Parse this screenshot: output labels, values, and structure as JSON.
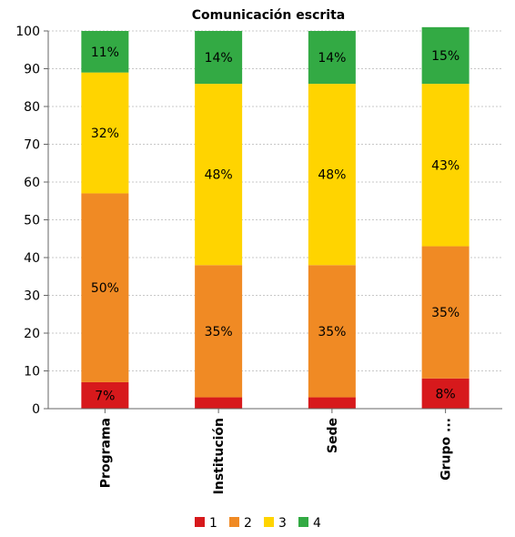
{
  "chart_data": {
    "type": "bar",
    "stacked": true,
    "title": "Comunicación escrita",
    "xlabel": "",
    "ylabel": "",
    "ylim": [
      0,
      100
    ],
    "yticks": [
      "0",
      "10",
      "20",
      "30",
      "40",
      "50",
      "60",
      "70",
      "80",
      "90",
      "100"
    ],
    "categories": [
      "Programa",
      "Institución",
      "Sede",
      "Grupo ..."
    ],
    "series": [
      {
        "name": "1",
        "color": "#d7191c",
        "values": [
          7,
          3,
          3,
          8
        ],
        "labels": [
          "7%",
          "",
          "",
          "8%"
        ]
      },
      {
        "name": "2",
        "color": "#f08a24",
        "values": [
          50,
          35,
          35,
          35
        ],
        "labels": [
          "50%",
          "35%",
          "35%",
          "35%"
        ]
      },
      {
        "name": "3",
        "color": "#ffd400",
        "values": [
          32,
          48,
          48,
          43
        ],
        "labels": [
          "32%",
          "48%",
          "48%",
          "43%"
        ]
      },
      {
        "name": "4",
        "color": "#33aa44",
        "values": [
          11,
          14,
          14,
          15
        ],
        "labels": [
          "11%",
          "14%",
          "14%",
          "15%"
        ]
      }
    ],
    "grid": true,
    "legend": "bottom"
  }
}
